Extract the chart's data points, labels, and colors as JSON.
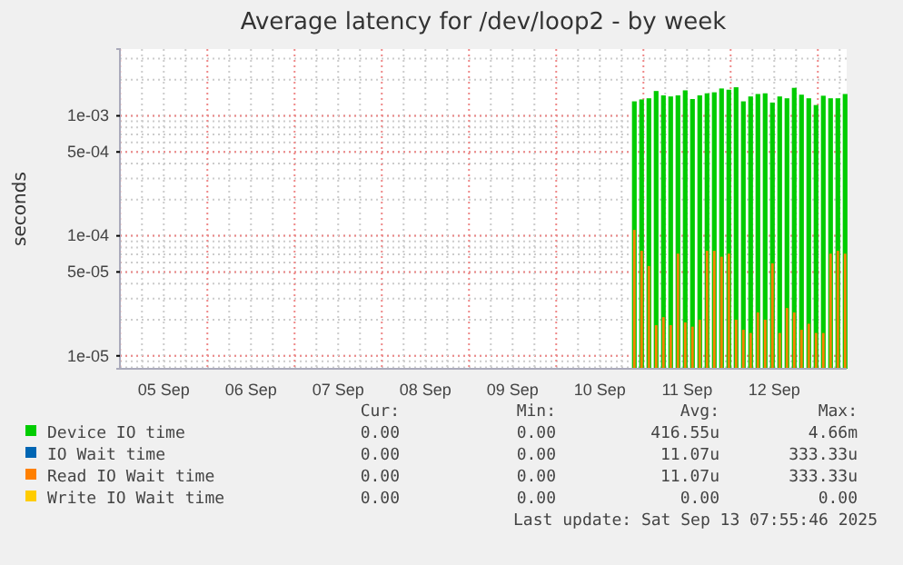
{
  "chart_data": {
    "type": "bar",
    "title": "Average latency for /dev/loop2 - by week",
    "ylabel": "seconds",
    "log": true,
    "grid": true,
    "legend": "bottom",
    "x": [
      "2025-09-10T21:30",
      "2025-09-10T23:30",
      "2025-09-11T01:30",
      "2025-09-11T03:30",
      "2025-09-11T05:30",
      "2025-09-11T07:30",
      "2025-09-11T09:30",
      "2025-09-11T11:30",
      "2025-09-11T13:30",
      "2025-09-11T15:30",
      "2025-09-11T17:30",
      "2025-09-11T19:30",
      "2025-09-11T21:30",
      "2025-09-11T23:30",
      "2025-09-12T01:30",
      "2025-09-12T03:30",
      "2025-09-12T05:30",
      "2025-09-12T07:30",
      "2025-09-12T09:30",
      "2025-09-12T11:30",
      "2025-09-12T13:30",
      "2025-09-12T15:30",
      "2025-09-12T17:30",
      "2025-09-12T19:30",
      "2025-09-12T21:30",
      "2025-09-12T23:30",
      "2025-09-13T01:30",
      "2025-09-13T03:30",
      "2025-09-13T05:30",
      "2025-09-13T07:30"
    ],
    "series": [
      {
        "name": "Device IO time",
        "color": "#00cc00",
        "values": [
          0.00132,
          0.00137,
          0.0014,
          0.00161,
          0.00148,
          0.00145,
          0.00148,
          0.00163,
          0.00138,
          0.00148,
          0.00154,
          0.00157,
          0.00169,
          0.00165,
          0.00173,
          0.00132,
          0.00145,
          0.00152,
          0.00154,
          0.00129,
          0.00145,
          0.0014,
          0.00171,
          0.0015,
          0.0014,
          0.00123,
          0.00147,
          0.0014,
          0.0014,
          0.00152
        ]
      },
      {
        "name": "IO Wait time",
        "color": "#0066b3",
        "values": [
          null,
          null,
          null,
          null,
          null,
          null,
          null,
          null,
          null,
          null,
          null,
          null,
          null,
          null,
          null,
          null,
          null,
          null,
          null,
          null,
          null,
          null,
          null,
          null,
          null,
          null,
          null,
          null,
          null,
          null
        ]
      },
      {
        "name": "Read IO Wait time",
        "color": "#ff8000",
        "values": [
          0.000112,
          7.5e-05,
          5.6e-05,
          1.8e-05,
          2.1e-05,
          1.8e-05,
          7.1e-05,
          1.9e-05,
          1.75e-05,
          2e-05,
          7.5e-05,
          7.5e-05,
          6.7e-05,
          7.1e-05,
          2e-05,
          1.65e-05,
          1.55e-05,
          2.3e-05,
          2e-05,
          5.9e-05,
          1.55e-05,
          2.5e-05,
          2.3e-05,
          1.65e-05,
          1.85e-05,
          1.55e-05,
          1.55e-05,
          7.1e-05,
          7.5e-05,
          7.1e-05
        ]
      },
      {
        "name": "Write IO Wait time",
        "color": "#ffcc00",
        "values": [
          null,
          null,
          null,
          null,
          null,
          null,
          null,
          null,
          null,
          null,
          null,
          null,
          null,
          null,
          null,
          null,
          null,
          null,
          null,
          null,
          null,
          null,
          null,
          null,
          null,
          null,
          null,
          null,
          null,
          null
        ]
      }
    ],
    "xlim": [
      "2025-09-04T23:56",
      "2025-09-13T07:56"
    ],
    "xticks": [
      {
        "value": "2025-09-05T12:00",
        "label": "05 Sep"
      },
      {
        "value": "2025-09-06T12:00",
        "label": "06 Sep"
      },
      {
        "value": "2025-09-07T12:00",
        "label": "07 Sep"
      },
      {
        "value": "2025-09-08T12:00",
        "label": "08 Sep"
      },
      {
        "value": "2025-09-09T12:00",
        "label": "09 Sep"
      },
      {
        "value": "2025-09-10T12:00",
        "label": "10 Sep"
      },
      {
        "value": "2025-09-11T12:00",
        "label": "11 Sep"
      },
      {
        "value": "2025-09-12T12:00",
        "label": "12 Sep"
      }
    ],
    "ylim": [
      7.8e-06,
      0.0036
    ],
    "yticks": [
      {
        "value": 1e-05,
        "label": "1e-05"
      },
      {
        "value": 5e-05,
        "label": "5e-05"
      },
      {
        "value": 0.0001,
        "label": "1e-04"
      },
      {
        "value": 0.0005,
        "label": "5e-04"
      },
      {
        "value": 0.001,
        "label": "1e-03"
      }
    ],
    "annotations": [
      "Cur:",
      "Min:",
      "Avg:",
      "Max:",
      "0.00",
      "0.00",
      "416.55u",
      "4.66m",
      "0.00",
      "0.00",
      "11.07u",
      "333.33u",
      "0.00",
      "0.00",
      "11.07u",
      "333.33u",
      "0.00",
      "0.00",
      "0.00",
      "0.00",
      "Last update: Sat Sep 13 07:55:46 2025"
    ]
  }
}
